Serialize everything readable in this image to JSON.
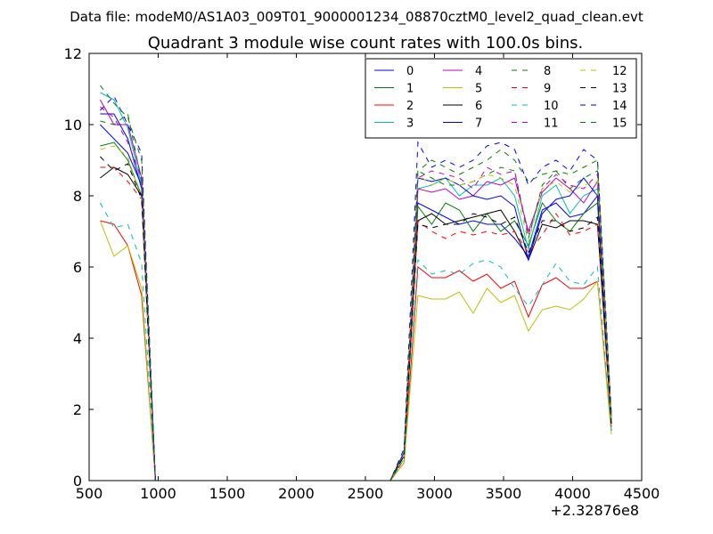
{
  "figure": {
    "suptitle": "Data file: modeM0/AS1A03_009T01_9000001234_08870cztM0_level2_quad_clean.evt"
  },
  "chart_data": {
    "type": "line",
    "title": "Quadrant 3 module wise count rates with 100.0s bins.",
    "xlabel": "",
    "ylabel": "",
    "x_offset_label": "+2.32876e8",
    "xlim": [
      500,
      4500
    ],
    "ylim": [
      0,
      12
    ],
    "xticks": [
      500,
      1000,
      1500,
      2000,
      2500,
      3000,
      3500,
      4000,
      4500
    ],
    "yticks": [
      0,
      2,
      4,
      6,
      8,
      10,
      12
    ],
    "grid": false,
    "legend": {
      "placement": "top-right",
      "columns": 4
    },
    "x": [
      580,
      680,
      780,
      880,
      980,
      1080,
      2680,
      2780,
      2880,
      2980,
      3080,
      3180,
      3280,
      3380,
      3480,
      3580,
      3680,
      3780,
      3880,
      3980,
      4080,
      4180,
      4280
    ],
    "series": [
      {
        "name": "0",
        "color": "#0000ff",
        "dash": false,
        "values": [
          10.0,
          9.6,
          9.2,
          8.3,
          0,
          0,
          0,
          0.8,
          7.8,
          7.6,
          7.4,
          7.2,
          7.3,
          7.2,
          7.2,
          6.8,
          6.3,
          7.6,
          7.8,
          7.4,
          7.5,
          8.0,
          1.7
        ]
      },
      {
        "name": "1",
        "color": "#008000",
        "dash": false,
        "values": [
          9.4,
          9.5,
          9.0,
          8.0,
          0,
          0,
          0,
          0.7,
          7.7,
          7.2,
          7.8,
          7.6,
          7.0,
          7.5,
          7.0,
          7.3,
          6.6,
          7.8,
          7.3,
          7.0,
          7.5,
          7.8,
          1.6
        ]
      },
      {
        "name": "2",
        "color": "#ff0000",
        "dash": false,
        "values": [
          7.3,
          7.2,
          6.6,
          5.2,
          0,
          0,
          0,
          0.5,
          6.0,
          5.7,
          5.7,
          5.9,
          5.6,
          5.8,
          5.4,
          5.6,
          4.6,
          5.5,
          5.7,
          5.4,
          5.4,
          5.6,
          1.4
        ]
      },
      {
        "name": "3",
        "color": "#00bfbf",
        "dash": false,
        "values": [
          10.9,
          10.7,
          9.9,
          8.3,
          0,
          0,
          0,
          0.8,
          8.2,
          8.3,
          8.5,
          8.0,
          8.3,
          8.3,
          8.5,
          8.0,
          6.5,
          8.0,
          8.3,
          7.5,
          8.0,
          8.2,
          1.7
        ]
      },
      {
        "name": "4",
        "color": "#bf00bf",
        "dash": false,
        "values": [
          10.7,
          10.0,
          10.0,
          8.5,
          0,
          0,
          0,
          0.8,
          8.2,
          8.1,
          8.2,
          7.9,
          8.0,
          8.4,
          8.3,
          8.5,
          7.0,
          8.1,
          8.5,
          8.2,
          7.8,
          8.4,
          1.7
        ]
      },
      {
        "name": "5",
        "color": "#bfbf00",
        "dash": false,
        "values": [
          7.3,
          6.3,
          6.6,
          5.4,
          0,
          0,
          0,
          0.5,
          5.2,
          5.1,
          5.1,
          5.3,
          4.7,
          5.4,
          5.0,
          5.2,
          4.2,
          4.8,
          4.9,
          4.8,
          5.1,
          5.6,
          1.3
        ]
      },
      {
        "name": "6",
        "color": "#000000",
        "dash": false,
        "values": [
          8.5,
          8.8,
          8.6,
          8.0,
          0,
          0,
          0,
          0.7,
          7.3,
          7.5,
          7.2,
          7.3,
          7.4,
          7.5,
          7.6,
          7.0,
          6.2,
          7.2,
          7.1,
          7.3,
          7.3,
          7.2,
          1.6
        ]
      },
      {
        "name": "7",
        "color": "#0000ff",
        "dash": false,
        "values": [
          10.3,
          10.3,
          9.6,
          8.2,
          0,
          0,
          0,
          0.8,
          8.5,
          8.4,
          8.5,
          8.3,
          8.0,
          7.9,
          8.0,
          7.7,
          6.2,
          7.5,
          7.9,
          8.0,
          8.5,
          8.0,
          1.8
        ]
      },
      {
        "name": "8",
        "color": "#008000",
        "dash": true,
        "values": [
          10.1,
          10.0,
          10.3,
          8.4,
          0,
          0,
          0,
          0.8,
          8.7,
          8.5,
          8.3,
          8.3,
          8.4,
          8.6,
          8.8,
          8.7,
          6.8,
          8.3,
          8.7,
          8.2,
          8.5,
          8.7,
          1.8
        ]
      },
      {
        "name": "9",
        "color": "#ff0000",
        "dash": true,
        "values": [
          8.8,
          8.8,
          8.4,
          7.9,
          0,
          0,
          0,
          0.6,
          7.3,
          7.0,
          6.8,
          7.0,
          6.9,
          7.0,
          6.9,
          7.0,
          6.4,
          6.9,
          7.5,
          6.9,
          7.0,
          7.2,
          1.5
        ]
      },
      {
        "name": "10",
        "color": "#00bfbf",
        "dash": true,
        "values": [
          7.8,
          7.1,
          7.2,
          6.1,
          0,
          0,
          0,
          0.6,
          6.2,
          5.8,
          5.9,
          5.8,
          6.1,
          6.2,
          6.0,
          5.4,
          4.9,
          5.5,
          6.1,
          5.6,
          5.5,
          6.0,
          1.4
        ]
      },
      {
        "name": "11",
        "color": "#bf00bf",
        "dash": true,
        "values": [
          10.5,
          10.2,
          9.5,
          8.5,
          0,
          0,
          0,
          0.8,
          8.5,
          8.7,
          8.6,
          8.5,
          8.2,
          8.8,
          8.6,
          8.7,
          6.9,
          8.2,
          8.6,
          8.3,
          8.2,
          8.6,
          1.8
        ]
      },
      {
        "name": "12",
        "color": "#bfbf00",
        "dash": true,
        "values": [
          9.3,
          9.4,
          9.1,
          7.9,
          0,
          0,
          0,
          0.7,
          8.6,
          8.3,
          8.5,
          8.3,
          8.4,
          8.6,
          8.5,
          8.3,
          6.7,
          8.2,
          8.4,
          8.1,
          8.3,
          8.4,
          1.7
        ]
      },
      {
        "name": "13",
        "color": "#000000",
        "dash": true,
        "values": [
          9.1,
          8.7,
          8.9,
          7.9,
          0,
          0,
          0,
          0.7,
          7.2,
          7.1,
          7.2,
          7.2,
          7.5,
          7.4,
          7.2,
          7.4,
          6.4,
          7.3,
          7.3,
          7.0,
          7.1,
          7.4,
          1.6
        ]
      },
      {
        "name": "14",
        "color": "#0000ff",
        "dash": true,
        "values": [
          10.4,
          10.8,
          10.0,
          9.2,
          0,
          0,
          0,
          0.9,
          9.5,
          8.8,
          9.0,
          8.8,
          9.0,
          9.4,
          9.5,
          9.3,
          8.3,
          8.8,
          9.0,
          8.7,
          9.3,
          9.0,
          1.9
        ]
      },
      {
        "name": "15",
        "color": "#008000",
        "dash": true,
        "values": [
          11.1,
          10.6,
          10.2,
          9.0,
          0,
          0,
          0,
          0.8,
          8.7,
          9.0,
          8.8,
          8.6,
          8.8,
          9.0,
          9.3,
          9.0,
          8.4,
          8.6,
          8.7,
          8.6,
          8.8,
          9.0,
          1.8
        ]
      }
    ]
  }
}
